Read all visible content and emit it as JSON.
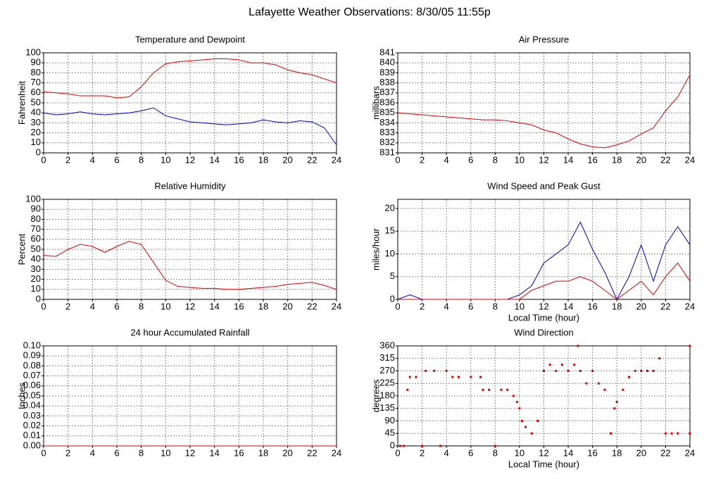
{
  "title": "Lafayette Weather Observations: 8/30/05 11:55p",
  "chart_data": [
    {
      "type": "line",
      "title": "Temperature and Dewpoint",
      "y_label": "Fahrenheit",
      "x": [
        0,
        1,
        2,
        3,
        4,
        5,
        6,
        7,
        8,
        9,
        10,
        11,
        12,
        13,
        14,
        15,
        16,
        17,
        18,
        19,
        20,
        21,
        22,
        23,
        24
      ],
      "series": [
        {
          "color": "#dd0000",
          "values": [
            61,
            60,
            59,
            57,
            57,
            57,
            55,
            56,
            66,
            80,
            89,
            91,
            92,
            93,
            94,
            94,
            93,
            90,
            90,
            88,
            83,
            80,
            78,
            74,
            70
          ]
        },
        {
          "color": "#0000cc",
          "values": [
            40,
            38,
            39,
            41,
            39,
            38,
            39,
            40,
            42,
            45,
            37,
            34,
            31,
            30,
            29,
            28,
            29,
            30,
            33,
            31,
            30,
            32,
            31,
            25,
            8
          ]
        }
      ],
      "xlim": [
        0,
        24
      ],
      "xticks": [
        0,
        2,
        4,
        6,
        8,
        10,
        12,
        14,
        16,
        18,
        20,
        22,
        24
      ],
      "ylim": [
        0,
        100
      ],
      "yticks": [
        0,
        10,
        20,
        30,
        40,
        50,
        60,
        70,
        80,
        90,
        100
      ],
      "grid": true
    },
    {
      "type": "line",
      "title": "Air Pressure",
      "y_label": "millibars",
      "x": [
        0,
        1,
        2,
        3,
        4,
        5,
        6,
        7,
        8,
        9,
        10,
        11,
        12,
        13,
        14,
        15,
        16,
        17,
        18,
        19,
        20,
        21,
        22,
        23,
        24
      ],
      "series": [
        {
          "color": "#dd0000",
          "values": [
            835,
            834.9,
            834.8,
            834.7,
            834.6,
            834.5,
            834.4,
            834.3,
            834.3,
            834.2,
            834,
            833.8,
            833.3,
            833,
            832.4,
            831.9,
            831.6,
            831.5,
            831.8,
            832.2,
            832.9,
            833.5,
            835.2,
            836.6,
            838.8
          ]
        }
      ],
      "xlim": [
        0,
        24
      ],
      "xticks": [
        0,
        2,
        4,
        6,
        8,
        10,
        12,
        14,
        16,
        18,
        20,
        22,
        24
      ],
      "ylim": [
        831,
        841
      ],
      "yticks": [
        831,
        832,
        833,
        834,
        835,
        836,
        837,
        838,
        839,
        840,
        841
      ],
      "grid": true
    },
    {
      "type": "line",
      "title": "Relative Humidity",
      "y_label": "Percent",
      "x": [
        0,
        1,
        2,
        3,
        4,
        5,
        6,
        7,
        8,
        9,
        10,
        11,
        12,
        13,
        14,
        15,
        16,
        17,
        18,
        19,
        20,
        21,
        22,
        23,
        24
      ],
      "series": [
        {
          "color": "#dd0000",
          "values": [
            44,
            43,
            50,
            55,
            53,
            47,
            53,
            58,
            55,
            37,
            19,
            13,
            12,
            11,
            11,
            10,
            10,
            11,
            12,
            13,
            15,
            16,
            17,
            14,
            10
          ]
        }
      ],
      "xlim": [
        0,
        24
      ],
      "xticks": [
        0,
        2,
        4,
        6,
        8,
        10,
        12,
        14,
        16,
        18,
        20,
        22,
        24
      ],
      "ylim": [
        0,
        100
      ],
      "yticks": [
        0,
        10,
        20,
        30,
        40,
        50,
        60,
        70,
        80,
        90,
        100
      ],
      "grid": true
    },
    {
      "type": "line",
      "title": "Wind Speed and Peak Gust",
      "y_label": "miles/hour",
      "x_label": "Local Time (hour)",
      "x": [
        0,
        1,
        2,
        3,
        4,
        5,
        6,
        7,
        8,
        9,
        10,
        11,
        12,
        13,
        14,
        15,
        16,
        17,
        18,
        19,
        20,
        21,
        22,
        23,
        24
      ],
      "series": [
        {
          "color": "#0000cc",
          "values": [
            0,
            1,
            0,
            0,
            0,
            0,
            0,
            0,
            0,
            0,
            1,
            3,
            8,
            10,
            12,
            17,
            11,
            6,
            0,
            5,
            12,
            4,
            12,
            16,
            12
          ]
        },
        {
          "color": "#dd0000",
          "values": [
            0,
            0,
            0,
            0,
            0,
            0,
            0,
            0,
            0,
            0,
            0,
            2,
            3,
            4,
            4,
            5,
            4,
            2,
            0,
            2,
            4,
            1,
            5,
            8,
            4
          ]
        }
      ],
      "xlim": [
        0,
        24
      ],
      "xticks": [
        0,
        2,
        4,
        6,
        8,
        10,
        12,
        14,
        16,
        18,
        20,
        22,
        24
      ],
      "ylim": [
        0,
        22
      ],
      "yticks": [
        0,
        5,
        10,
        15,
        20
      ],
      "grid": true
    },
    {
      "type": "line",
      "title": "24 hour Accumulated Rainfall",
      "y_label": "Inches",
      "x": [
        0,
        24
      ],
      "series": [
        {
          "color": "#dd0000",
          "values": [
            0,
            0
          ]
        }
      ],
      "xlim": [
        0,
        24
      ],
      "xticks": [
        0,
        2,
        4,
        6,
        8,
        10,
        12,
        14,
        16,
        18,
        20,
        22,
        24
      ],
      "ylim": [
        0,
        0.1
      ],
      "yticks": [
        {
          "value": 0,
          "label": "0.00"
        },
        {
          "value": 0.01,
          "label": "0.01"
        },
        {
          "value": 0.02,
          "label": "0.02"
        },
        {
          "value": 0.03,
          "label": "0.03"
        },
        {
          "value": 0.04,
          "label": "0.04"
        },
        {
          "value": 0.05,
          "label": "0.05"
        },
        {
          "value": 0.06,
          "label": "0.06"
        },
        {
          "value": 0.07,
          "label": "0.07"
        },
        {
          "value": 0.08,
          "label": "0.08"
        },
        {
          "value": 0.09,
          "label": "0.09"
        },
        {
          "value": 0.1,
          "label": "0.10"
        }
      ],
      "grid": true
    },
    {
      "type": "scatter",
      "title": "Wind Direction",
      "y_label": "degrees",
      "x_label": "Local Time (hour)",
      "x": [
        0.2,
        0.5,
        0.8,
        1,
        1.5,
        2,
        2.3,
        3,
        3.5,
        4,
        4.5,
        5,
        6,
        6.8,
        7,
        7.5,
        8,
        8.5,
        9,
        9.5,
        9.8,
        10,
        10.2,
        10.5,
        11,
        11.5,
        12,
        12.5,
        13,
        13.5,
        14,
        14.5,
        14.8,
        15,
        15.5,
        16,
        16.5,
        17,
        17.5,
        17.8,
        18,
        18.5,
        19,
        19.5,
        20,
        20.5,
        21,
        21.5,
        22,
        22.5,
        23,
        24,
        24
      ],
      "series": [
        {
          "color": "#dd0000",
          "values": [
            0,
            0,
            202,
            248,
            248,
            0,
            270,
            270,
            0,
            270,
            248,
            248,
            248,
            248,
            202,
            202,
            0,
            202,
            202,
            180,
            158,
            135,
            90,
            68,
            45,
            90,
            270,
            292,
            270,
            292,
            270,
            292,
            360,
            270,
            225,
            270,
            225,
            202,
            45,
            135,
            158,
            202,
            248,
            270,
            270,
            270,
            270,
            315,
            45,
            45,
            45,
            45,
            360
          ]
        }
      ],
      "xlim": [
        0,
        24
      ],
      "xticks": [
        0,
        2,
        4,
        6,
        8,
        10,
        12,
        14,
        16,
        18,
        20,
        22,
        24
      ],
      "ylim": [
        0,
        360
      ],
      "yticks": [
        0,
        45,
        90,
        135,
        180,
        225,
        270,
        315,
        360
      ],
      "grid": true
    }
  ]
}
